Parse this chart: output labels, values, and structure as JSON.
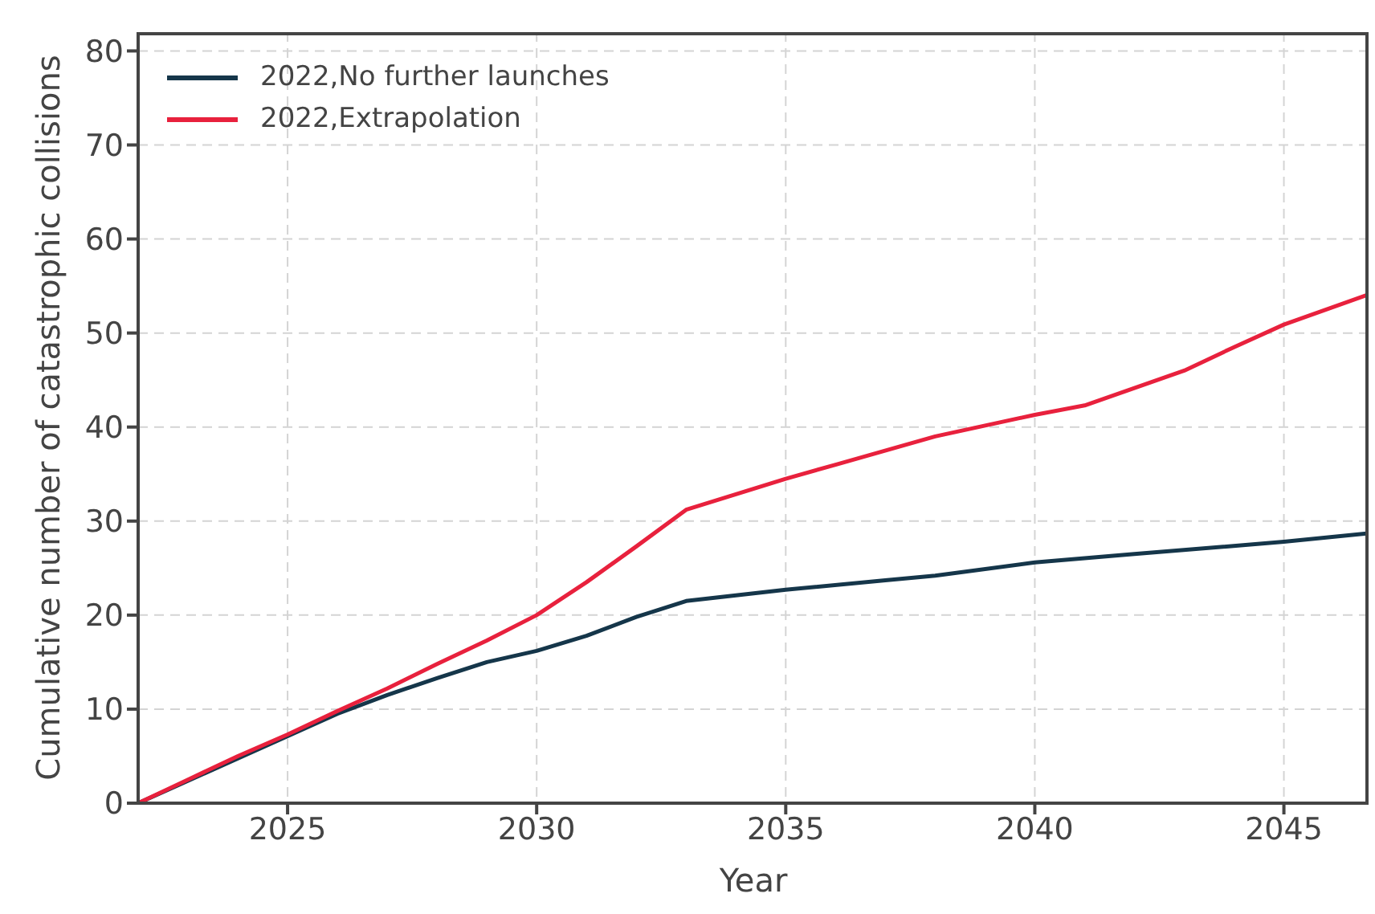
{
  "chart_data": {
    "type": "line",
    "xlabel": "Year",
    "ylabel": "Cumulative number of catastrophic collisions",
    "xlim": [
      2022,
      2046.7
    ],
    "xticks": [
      2025,
      2030,
      2035,
      2040,
      2045
    ],
    "ylim": [
      0,
      82
    ],
    "yticks": [
      0,
      10,
      20,
      30,
      40,
      50,
      60,
      70,
      80
    ],
    "grid": true,
    "legend": "top left",
    "marker": "none",
    "line_style": "solid",
    "series": [
      {
        "name": "2022,No further launches",
        "color": "#15364a",
        "x": [
          2022,
          2026,
          2027,
          2028,
          2029,
          2030,
          2031,
          2032,
          2033,
          2034,
          2035,
          2037,
          2038,
          2040,
          2042,
          2045,
          2046.7
        ],
        "values": [
          0,
          9.5,
          11.5,
          13.3,
          15,
          16.2,
          17.8,
          19.8,
          21.5,
          22.1,
          22.7,
          23.7,
          24.2,
          25.6,
          26.5,
          27.8,
          28.7
        ]
      },
      {
        "name": "2022,Extrapolation",
        "color": "#e8213d",
        "x": [
          2022,
          2023,
          2024,
          2025,
          2026,
          2027,
          2028,
          2029,
          2030,
          2031,
          2032,
          2033,
          2035,
          2036,
          2038,
          2040,
          2041,
          2043,
          2044,
          2045,
          2046.7
        ],
        "values": [
          0,
          2.5,
          5,
          7.3,
          9.8,
          12.2,
          14.8,
          17.3,
          20,
          23.5,
          27.3,
          31.2,
          34.5,
          36,
          39,
          41.3,
          42.3,
          46,
          48.5,
          50.9,
          54.1
        ]
      }
    ]
  }
}
